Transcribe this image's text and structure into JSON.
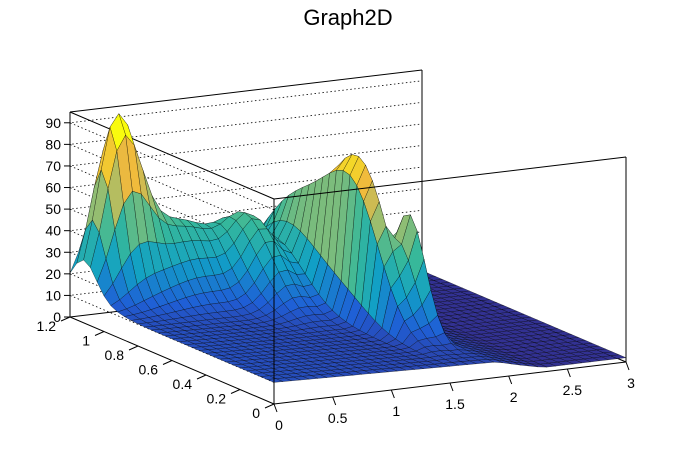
{
  "chart_data": {
    "type": "surface",
    "title": "Graph2D",
    "xlabel": "",
    "ylabel": "",
    "zlabel": "",
    "xlim": [
      0,
      3
    ],
    "ylim": [
      0,
      1.2
    ],
    "zlim": [
      0,
      95
    ],
    "x_ticks": [
      "0",
      "0.5",
      "1",
      "1.5",
      "2",
      "2.5",
      "3"
    ],
    "y_ticks": [
      "0",
      "0.2",
      "0.4",
      "0.6",
      "0.8",
      "1",
      "1.2"
    ],
    "z_ticks": [
      "0",
      "10",
      "20",
      "30",
      "40",
      "50",
      "60",
      "70",
      "80",
      "90"
    ],
    "grid": true,
    "colormap": [
      "#352a87",
      "#1f5fd6",
      "#11a0c6",
      "#36b89a",
      "#a5be6a",
      "#f0b93d",
      "#f9fb0e"
    ],
    "surface": {
      "base": 10,
      "edge_floor": 2,
      "peaks": [
        {
          "x": 0.28,
          "y": 1.12,
          "z": 73,
          "sx": 0.16,
          "sy": 0.07
        },
        {
          "x": 0.75,
          "y": 1.08,
          "z": 35,
          "sx": 0.35,
          "sy": 0.12
        },
        {
          "x": 1.62,
          "y": 0.62,
          "z": 73,
          "sx": 0.06,
          "sy": 0.16
        },
        {
          "x": 1.78,
          "y": 0.45,
          "z": 58,
          "sx": 0.05,
          "sy": 0.1
        },
        {
          "x": 1.25,
          "y": 0.95,
          "z": 30,
          "sx": 0.15,
          "sy": 0.15
        },
        {
          "x": 1.6,
          "y": 0.95,
          "z": 40,
          "sx": 0.1,
          "sy": 0.2
        }
      ]
    }
  }
}
